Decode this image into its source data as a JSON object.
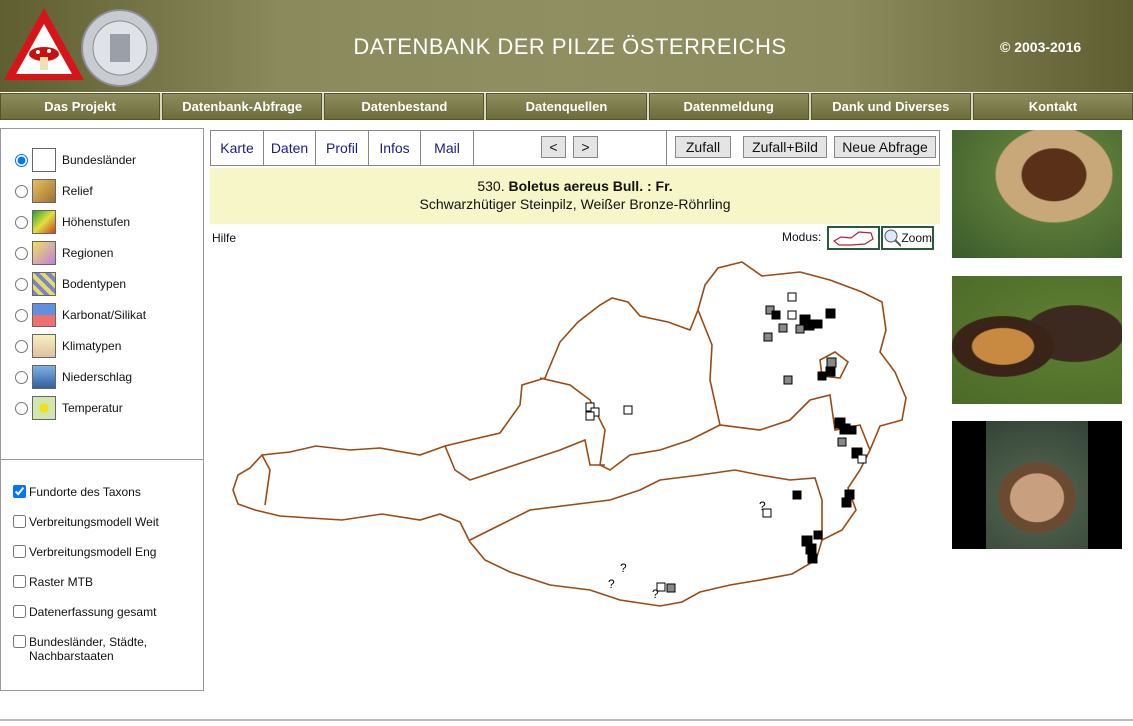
{
  "header": {
    "title": "DATENBANK DER PILZE ÖSTERREICHS",
    "copyright": "© 2003-2016"
  },
  "nav": [
    "Das Projekt",
    "Datenbank-Abfrage",
    "Datenbestand",
    "Datenquellen",
    "Datenmeldung",
    "Dank und Diverses",
    "Kontakt"
  ],
  "layers": [
    {
      "label": "Bundesländer",
      "selected": true
    },
    {
      "label": "Relief",
      "selected": false
    },
    {
      "label": "Höhenstufen",
      "selected": false
    },
    {
      "label": "Regionen",
      "selected": false
    },
    {
      "label": "Bodentypen",
      "selected": false
    },
    {
      "label": "Karbonat/Silikat",
      "selected": false
    },
    {
      "label": "Klimatypen",
      "selected": false
    },
    {
      "label": "Niederschlag",
      "selected": false
    },
    {
      "label": "Temperatur",
      "selected": false
    }
  ],
  "overlays": [
    {
      "label": "Fundorte des Taxons",
      "checked": true
    },
    {
      "label": "Verbreitungsmodell Weit",
      "checked": false
    },
    {
      "label": "Verbreitungsmodell Eng",
      "checked": false
    },
    {
      "label": "Raster MTB",
      "checked": false
    },
    {
      "label": "Datenerfassung gesamt",
      "checked": false
    },
    {
      "label": "Bundesländer, Städte, Nachbarstaaten",
      "checked": false
    }
  ],
  "tabs": [
    "Karte",
    "Daten",
    "Profil",
    "Infos",
    "Mail"
  ],
  "pager": [
    "<",
    ">"
  ],
  "actions": [
    "Zufall",
    "Zufall+Bild",
    "Neue Abfrage"
  ],
  "taxon": {
    "number": "530.",
    "name": "Boletus aereus Bull. : Fr.",
    "common": "Schwarzhütiger Steinpilz, Weißer Bronze-Röhrling"
  },
  "help": "Hilfe",
  "mode_label": "Modus:",
  "zoom": "Zoom",
  "map": {
    "uncertain_marker": "?"
  }
}
